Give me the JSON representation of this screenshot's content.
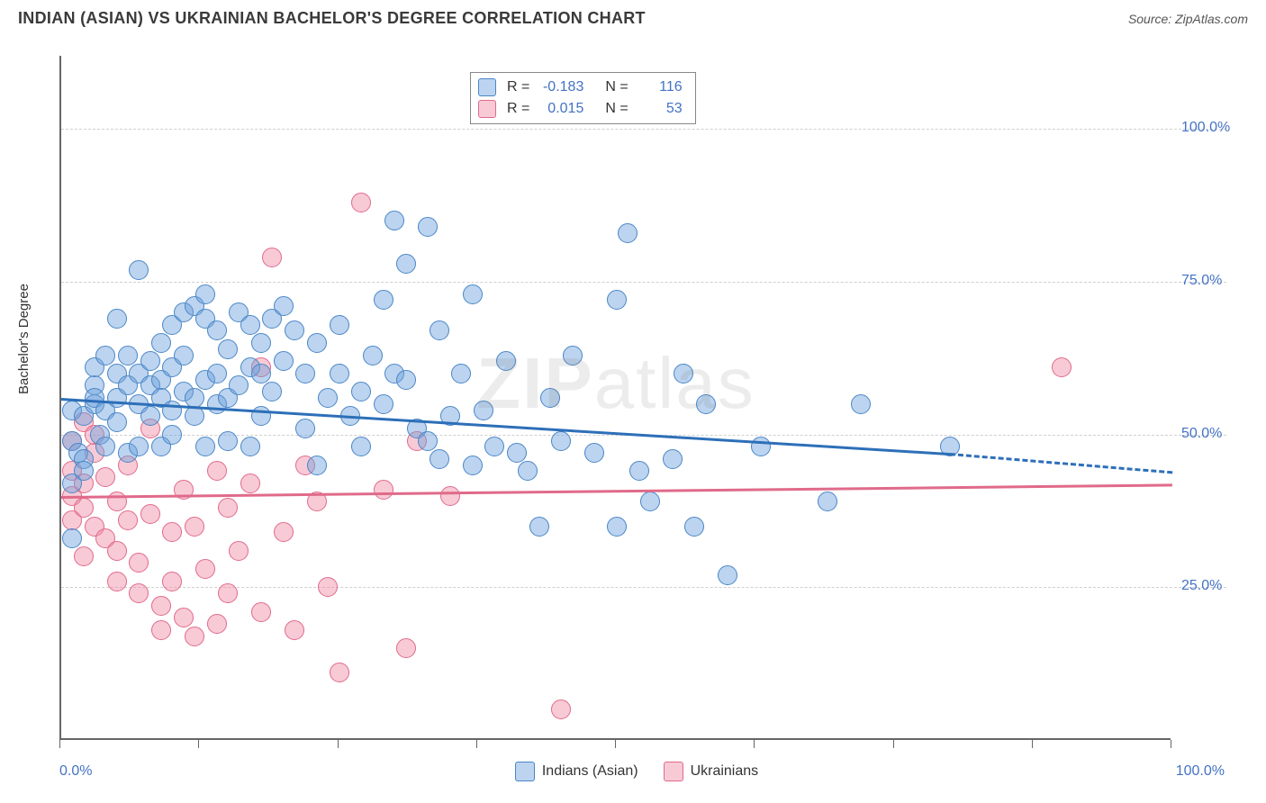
{
  "header": {
    "title": "INDIAN (ASIAN) VS UKRAINIAN BACHELOR'S DEGREE CORRELATION CHART",
    "source_prefix": "Source: ",
    "source_name": "ZipAtlas.com"
  },
  "watermark": {
    "a": "ZIP",
    "b": "atlas"
  },
  "chart": {
    "type": "scatter",
    "ylabel": "Bachelor's Degree",
    "xmin": 0,
    "xmax": 100,
    "ymin": 0,
    "ymax": 112,
    "xaxis_label_min": "0.0%",
    "xaxis_label_max": "100.0%",
    "yticks": [
      {
        "v": 25,
        "label": "25.0%"
      },
      {
        "v": 50,
        "label": "50.0%"
      },
      {
        "v": 75,
        "label": "75.0%"
      },
      {
        "v": 100,
        "label": "100.0%"
      }
    ],
    "xticks_minor": [
      0,
      12.5,
      25,
      37.5,
      50,
      62.5,
      75,
      87.5,
      100
    ],
    "grid_color": "#cfcfcf",
    "background_color": "#ffffff",
    "axis_color": "#666666"
  },
  "series": {
    "indians": {
      "label": "Indians (Asian)",
      "fill": "rgba(107,159,219,0.45)",
      "stroke": "#4a86c7",
      "line_color": "#2d6fb8",
      "marker_r": 11,
      "R": "-0.183",
      "N": "116",
      "trend": {
        "x1": 0,
        "y1": 56,
        "x2_solid": 80,
        "y2_solid": 47,
        "x2": 100,
        "y2": 44
      },
      "points": [
        [
          1,
          33
        ],
        [
          1,
          42
        ],
        [
          1,
          49
        ],
        [
          1,
          54
        ],
        [
          1.5,
          47
        ],
        [
          2,
          46
        ],
        [
          2,
          44
        ],
        [
          2,
          53
        ],
        [
          3,
          55
        ],
        [
          3,
          58
        ],
        [
          3,
          61
        ],
        [
          3,
          56
        ],
        [
          3.5,
          50
        ],
        [
          4,
          63
        ],
        [
          4,
          54
        ],
        [
          4,
          48
        ],
        [
          5,
          52
        ],
        [
          5,
          60
        ],
        [
          5,
          69
        ],
        [
          5,
          56
        ],
        [
          6,
          58
        ],
        [
          6,
          63
        ],
        [
          6,
          47
        ],
        [
          7,
          55
        ],
        [
          7,
          48
        ],
        [
          7,
          60
        ],
        [
          7,
          77
        ],
        [
          8,
          62
        ],
        [
          8,
          58
        ],
        [
          8,
          53
        ],
        [
          9,
          65
        ],
        [
          9,
          59
        ],
        [
          9,
          56
        ],
        [
          9,
          48
        ],
        [
          10,
          68
        ],
        [
          10,
          61
        ],
        [
          10,
          54
        ],
        [
          10,
          50
        ],
        [
          11,
          63
        ],
        [
          11,
          70
        ],
        [
          11,
          57
        ],
        [
          12,
          56
        ],
        [
          12,
          53
        ],
        [
          12,
          71
        ],
        [
          13,
          69
        ],
        [
          13,
          73
        ],
        [
          13,
          59
        ],
        [
          13,
          48
        ],
        [
          14,
          67
        ],
        [
          14,
          60
        ],
        [
          14,
          55
        ],
        [
          15,
          56
        ],
        [
          15,
          64
        ],
        [
          15,
          49
        ],
        [
          16,
          70
        ],
        [
          16,
          58
        ],
        [
          17,
          68
        ],
        [
          17,
          61
        ],
        [
          17,
          48
        ],
        [
          18,
          65
        ],
        [
          18,
          60
        ],
        [
          18,
          53
        ],
        [
          19,
          69
        ],
        [
          19,
          57
        ],
        [
          20,
          71
        ],
        [
          20,
          62
        ],
        [
          21,
          67
        ],
        [
          22,
          60
        ],
        [
          22,
          51
        ],
        [
          23,
          65
        ],
        [
          23,
          45
        ],
        [
          24,
          56
        ],
        [
          25,
          60
        ],
        [
          25,
          68
        ],
        [
          26,
          53
        ],
        [
          27,
          57
        ],
        [
          27,
          48
        ],
        [
          28,
          63
        ],
        [
          29,
          72
        ],
        [
          29,
          55
        ],
        [
          30,
          85
        ],
        [
          30,
          60
        ],
        [
          31,
          59
        ],
        [
          31,
          78
        ],
        [
          32,
          51
        ],
        [
          33,
          49
        ],
        [
          33,
          84
        ],
        [
          34,
          46
        ],
        [
          34,
          67
        ],
        [
          35,
          53
        ],
        [
          36,
          60
        ],
        [
          37,
          45
        ],
        [
          37,
          73
        ],
        [
          38,
          54
        ],
        [
          39,
          48
        ],
        [
          40,
          62
        ],
        [
          41,
          47
        ],
        [
          42,
          44
        ],
        [
          43,
          35
        ],
        [
          44,
          56
        ],
        [
          45,
          49
        ],
        [
          46,
          63
        ],
        [
          48,
          47
        ],
        [
          50,
          35
        ],
        [
          50,
          72
        ],
        [
          51,
          83
        ],
        [
          52,
          44
        ],
        [
          53,
          39
        ],
        [
          55,
          46
        ],
        [
          56,
          60
        ],
        [
          57,
          35
        ],
        [
          58,
          55
        ],
        [
          60,
          27
        ],
        [
          63,
          48
        ],
        [
          69,
          39
        ],
        [
          72,
          55
        ],
        [
          80,
          48
        ]
      ]
    },
    "ukrainians": {
      "label": "Ukrainians",
      "fill": "rgba(239,138,165,0.45)",
      "stroke": "#e06a8a",
      "line_color": "#e06a8a",
      "marker_r": 11,
      "R": "0.015",
      "N": "53",
      "trend": {
        "x1": 0,
        "y1": 40,
        "x2_solid": 100,
        "y2_solid": 42,
        "x2": 100,
        "y2": 42
      },
      "points": [
        [
          1,
          49
        ],
        [
          1,
          44
        ],
        [
          1,
          40
        ],
        [
          1,
          36
        ],
        [
          2,
          52
        ],
        [
          2,
          42
        ],
        [
          2,
          38
        ],
        [
          2,
          30
        ],
        [
          3,
          47
        ],
        [
          3,
          35
        ],
        [
          3,
          50
        ],
        [
          4,
          33
        ],
        [
          4,
          43
        ],
        [
          5,
          31
        ],
        [
          5,
          26
        ],
        [
          5,
          39
        ],
        [
          6,
          45
        ],
        [
          6,
          36
        ],
        [
          7,
          29
        ],
        [
          7,
          24
        ],
        [
          8,
          51
        ],
        [
          8,
          37
        ],
        [
          9,
          22
        ],
        [
          9,
          18
        ],
        [
          10,
          34
        ],
        [
          10,
          26
        ],
        [
          11,
          41
        ],
        [
          11,
          20
        ],
        [
          12,
          35
        ],
        [
          12,
          17
        ],
        [
          13,
          28
        ],
        [
          14,
          44
        ],
        [
          14,
          19
        ],
        [
          15,
          38
        ],
        [
          15,
          24
        ],
        [
          16,
          31
        ],
        [
          17,
          42
        ],
        [
          18,
          61
        ],
        [
          18,
          21
        ],
        [
          19,
          79
        ],
        [
          20,
          34
        ],
        [
          21,
          18
        ],
        [
          22,
          45
        ],
        [
          23,
          39
        ],
        [
          24,
          25
        ],
        [
          25,
          11
        ],
        [
          27,
          88
        ],
        [
          29,
          41
        ],
        [
          31,
          15
        ],
        [
          32,
          49
        ],
        [
          35,
          40
        ],
        [
          45,
          5
        ],
        [
          90,
          61
        ]
      ]
    }
  },
  "legend_top": {
    "R_label": "R =",
    "N_label": "N ="
  },
  "legend_x": {
    "series": [
      "indians",
      "ukrainians"
    ]
  }
}
